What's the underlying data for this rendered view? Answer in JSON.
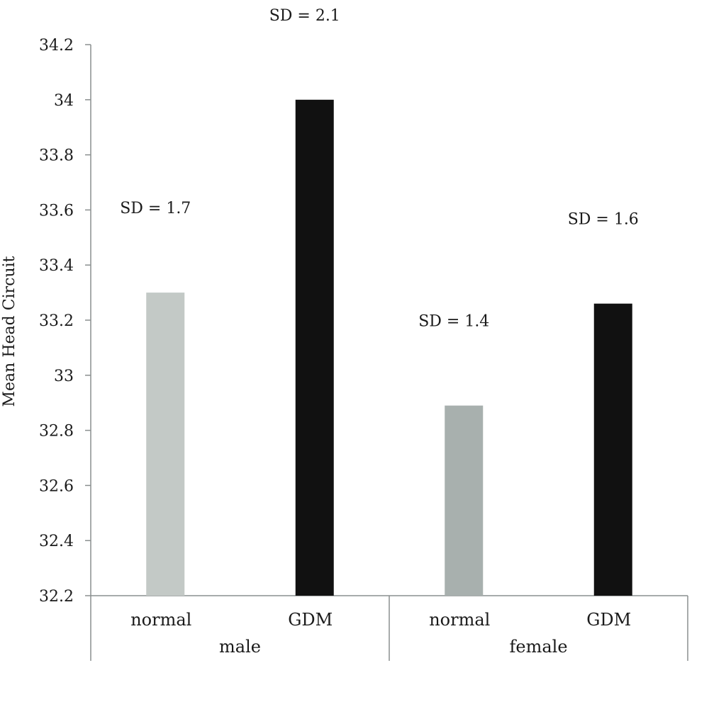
{
  "chart_data": {
    "type": "bar",
    "ylabel": "Mean Head Circuit",
    "ylim": [
      32.2,
      34.2
    ],
    "yticks": [
      "32.2",
      "32.4",
      "32.6",
      "32.8",
      "33",
      "33.2",
      "33.4",
      "33.6",
      "33.8",
      "34",
      "34.2"
    ],
    "groups": [
      {
        "name": "male",
        "bars": [
          {
            "category": "normal",
            "value": 33.3,
            "annotation": "SD = 1.7",
            "color": "#c3c9c6"
          },
          {
            "category": "GDM",
            "value": 34.0,
            "annotation": "SD = 2.1",
            "color": "#111111"
          }
        ]
      },
      {
        "name": "female",
        "bars": [
          {
            "category": "normal",
            "value": 32.89,
            "annotation": "SD = 1.4",
            "color": "#a8b0ae"
          },
          {
            "category": "GDM",
            "value": 33.26,
            "annotation": "SD = 1.6",
            "color": "#111111"
          }
        ]
      }
    ],
    "grid": false,
    "legend": "none"
  }
}
